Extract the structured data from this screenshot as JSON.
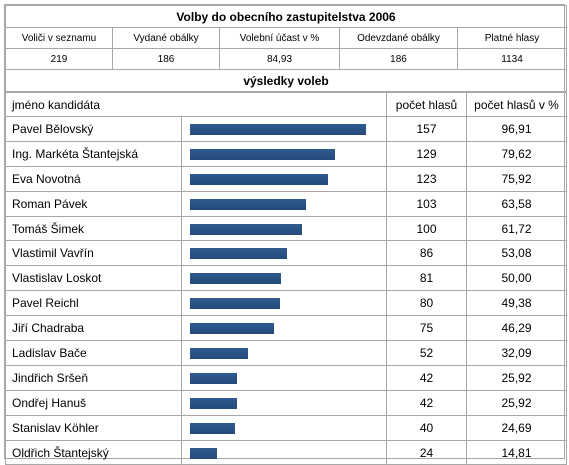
{
  "title": "Volby do obecního zastupitelstva 2006",
  "stats": {
    "headers": [
      "Voliči v seznamu",
      "Vydané obálky",
      "Volební účast v %",
      "Odevzdané obálky",
      "Platné hlasy"
    ],
    "values": [
      "219",
      "186",
      "84,93",
      "186",
      "1134"
    ]
  },
  "results_title": "výsledky voleb",
  "columns": {
    "name": "jméno kandidáta",
    "votes": "počet hlasů",
    "percent": "počet hlasů v %"
  },
  "bar_color": "#234a7a",
  "candidates": [
    {
      "name": "Pavel Bělovský",
      "votes": "157",
      "percent": "96,91"
    },
    {
      "name": "Ing. Markéta Štantejská",
      "votes": "129",
      "percent": "79,62"
    },
    {
      "name": "Eva Novotná",
      "votes": "123",
      "percent": "75,92"
    },
    {
      "name": "Roman Pávek",
      "votes": "103",
      "percent": "63,58"
    },
    {
      "name": "Tomáš Šimek",
      "votes": "100",
      "percent": "61,72"
    },
    {
      "name": "Vlastimil Vavřín",
      "votes": "86",
      "percent": "53,08"
    },
    {
      "name": "Vlastislav Loskot",
      "votes": "81",
      "percent": "50,00"
    },
    {
      "name": "Pavel Reichl",
      "votes": "80",
      "percent": "49,38"
    },
    {
      "name": "Jiří Chadraba",
      "votes": "75",
      "percent": "46,29"
    },
    {
      "name": "Ladislav Bače",
      "votes": "52",
      "percent": "32,09"
    },
    {
      "name": "Jindřich Sršeň",
      "votes": "42",
      "percent": "25,92"
    },
    {
      "name": "Ondřej Hanuš",
      "votes": "42",
      "percent": "25,92"
    },
    {
      "name": "Stanislav Köhler",
      "votes": "40",
      "percent": "24,69"
    },
    {
      "name": "Oldřich Štantejský",
      "votes": "24",
      "percent": "14,81"
    }
  ]
}
